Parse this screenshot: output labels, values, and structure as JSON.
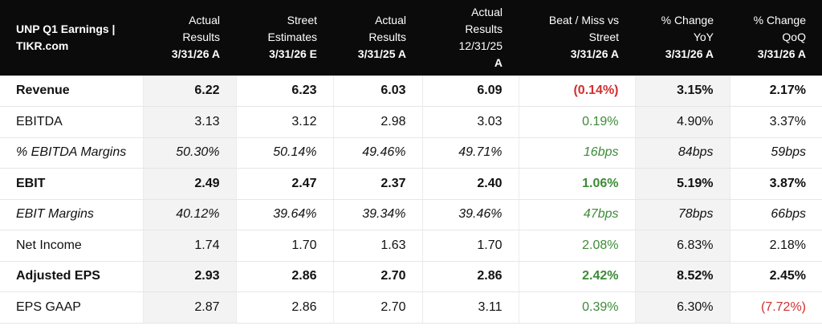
{
  "header": {
    "title_line1": "UNP Q1 Earnings |",
    "title_line2": "TIKR.com",
    "columns": [
      {
        "lines": [
          "Actual",
          "Results"
        ],
        "date": "3/31/26 A"
      },
      {
        "lines": [
          "Street",
          "Estimates"
        ],
        "date": "3/31/26 E"
      },
      {
        "lines": [
          "Actual",
          "Results"
        ],
        "date": "3/31/25 A"
      },
      {
        "lines": [
          "Actual",
          "Results",
          "12/31/25"
        ],
        "date": "A"
      },
      {
        "lines": [
          "Beat / Miss vs",
          "Street"
        ],
        "date": "3/31/26 A"
      },
      {
        "lines": [
          "% Change",
          "YoY"
        ],
        "date": "3/31/26 A"
      },
      {
        "lines": [
          "% Change",
          "QoQ"
        ],
        "date": "3/31/26 A"
      }
    ]
  },
  "rows": [
    {
      "label": "Revenue",
      "style": "bold",
      "cells": [
        "6.22",
        "6.23",
        "6.03",
        "6.09",
        "(0.14%)",
        "3.15%",
        "2.17%"
      ],
      "beat_tone": "neg",
      "qoq_tone": ""
    },
    {
      "label": "EBITDA",
      "style": "normal",
      "cells": [
        "3.13",
        "3.12",
        "2.98",
        "3.03",
        "0.19%",
        "4.90%",
        "3.37%"
      ],
      "beat_tone": "pos",
      "qoq_tone": ""
    },
    {
      "label": "% EBITDA Margins",
      "style": "italic",
      "cells": [
        "50.30%",
        "50.14%",
        "49.46%",
        "49.71%",
        "16bps",
        "84bps",
        "59bps"
      ],
      "beat_tone": "pos",
      "qoq_tone": ""
    },
    {
      "label": "EBIT",
      "style": "bold",
      "cells": [
        "2.49",
        "2.47",
        "2.37",
        "2.40",
        "1.06%",
        "5.19%",
        "3.87%"
      ],
      "beat_tone": "pos",
      "qoq_tone": ""
    },
    {
      "label": "EBIT Margins",
      "style": "italic",
      "cells": [
        "40.12%",
        "39.64%",
        "39.34%",
        "39.46%",
        "47bps",
        "78bps",
        "66bps"
      ],
      "beat_tone": "pos",
      "qoq_tone": ""
    },
    {
      "label": "Net Income",
      "style": "normal",
      "cells": [
        "1.74",
        "1.70",
        "1.63",
        "1.70",
        "2.08%",
        "6.83%",
        "2.18%"
      ],
      "beat_tone": "pos",
      "qoq_tone": ""
    },
    {
      "label": "Adjusted EPS",
      "style": "bold",
      "cells": [
        "2.93",
        "2.86",
        "2.70",
        "2.86",
        "2.42%",
        "8.52%",
        "2.45%"
      ],
      "beat_tone": "pos",
      "qoq_tone": ""
    },
    {
      "label": "EPS GAAP",
      "style": "normal",
      "cells": [
        "2.87",
        "2.86",
        "2.70",
        "3.11",
        "0.39%",
        "6.30%",
        "(7.72%)"
      ],
      "beat_tone": "pos",
      "qoq_tone": "neg"
    }
  ],
  "colors": {
    "header_bg": "#0b0b0b",
    "positive": "#3d8b37",
    "negative": "#cf3030",
    "shade": "#f3f3f3"
  }
}
